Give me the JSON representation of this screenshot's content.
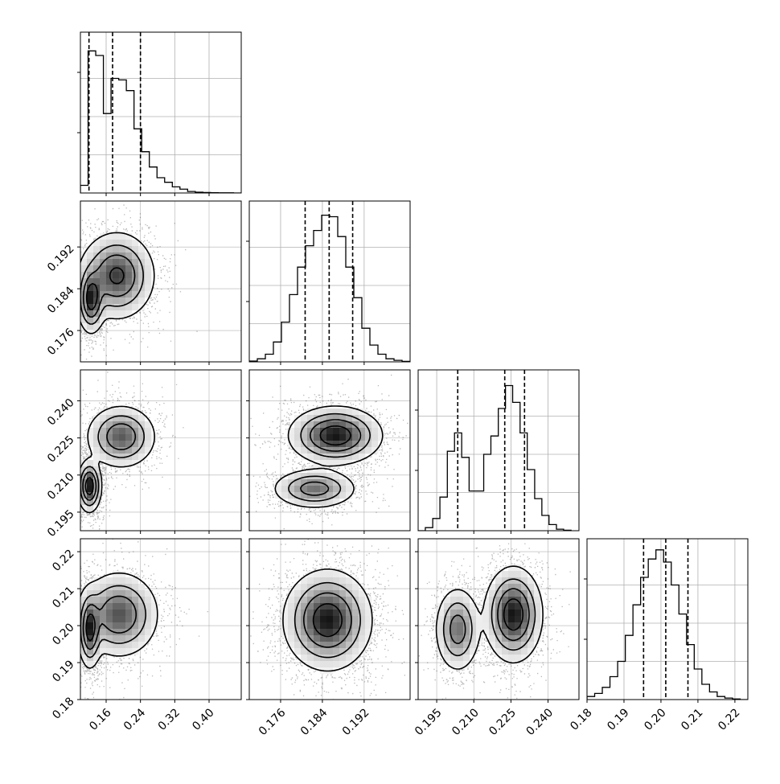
{
  "chart_data": {
    "type": "corner",
    "variables": [
      {
        "range": [
          0.1,
          0.475
        ],
        "ticks": [
          "0.16",
          "0.24",
          "0.32",
          "0.40"
        ],
        "tick_values": [
          0.16,
          0.24,
          0.32,
          0.4
        ],
        "quantiles": [
          0.12,
          0.175,
          0.24
        ],
        "hist_bins": [
          0.1,
          0.1179,
          0.1357,
          0.1536,
          0.1714,
          0.1893,
          0.2071,
          0.225,
          0.2429,
          0.2607,
          0.2786,
          0.2964,
          0.3143,
          0.3321,
          0.35,
          0.3679,
          0.3857,
          0.4036,
          0.4214,
          0.4393,
          0.4571,
          0.475
        ],
        "hist_counts": [
          0.05,
          0.93,
          0.9,
          0.52,
          0.75,
          0.74,
          0.67,
          0.42,
          0.27,
          0.17,
          0.1,
          0.07,
          0.04,
          0.025,
          0.01,
          0.005,
          0.003,
          0.002,
          0.001,
          0.001,
          0
        ],
        "hist_ylim": [
          0,
          1.0
        ]
      },
      {
        "range": [
          0.17,
          0.2008
        ],
        "ticks": [
          "0.176",
          "0.184",
          "0.192"
        ],
        "tick_values": [
          0.176,
          0.184,
          0.192
        ],
        "quantiles": [
          0.1807,
          0.1853,
          0.1898
        ],
        "hist_bins": [
          0.17,
          0.17154,
          0.17308,
          0.17462,
          0.17616,
          0.1777,
          0.17924,
          0.18078,
          0.18232,
          0.18386,
          0.1854,
          0.18694,
          0.18848,
          0.19002,
          0.19156,
          0.1931,
          0.19464,
          0.19618,
          0.19772,
          0.19926,
          0.2008
        ],
        "hist_counts": [
          0.005,
          0.02,
          0.05,
          0.13,
          0.26,
          0.44,
          0.62,
          0.76,
          0.86,
          0.96,
          0.95,
          0.82,
          0.62,
          0.42,
          0.22,
          0.11,
          0.05,
          0.02,
          0.01,
          0.003
        ],
        "hist_ylim": [
          0,
          1.0
        ]
      },
      {
        "range": [
          0.1875,
          0.2525
        ],
        "ticks": [
          "0.195",
          "0.210",
          "0.225",
          "0.240"
        ],
        "tick_values": [
          0.195,
          0.21,
          0.225,
          0.24
        ],
        "quantiles": [
          0.2035,
          0.2225,
          0.2305
        ],
        "hist_bins": [
          0.1875,
          0.1904,
          0.1934,
          0.1963,
          0.1993,
          0.2022,
          0.2051,
          0.2081,
          0.211,
          0.214,
          0.2169,
          0.2199,
          0.2228,
          0.2257,
          0.2287,
          0.2316,
          0.2346,
          0.2375,
          0.2404,
          0.2434,
          0.2463,
          0.2493
        ],
        "hist_counts": [
          0,
          0.02,
          0.08,
          0.22,
          0.52,
          0.64,
          0.48,
          0.26,
          0.26,
          0.5,
          0.62,
          0.8,
          0.95,
          0.84,
          0.64,
          0.4,
          0.21,
          0.1,
          0.04,
          0.01,
          0.003
        ],
        "hist_ylim": [
          0,
          1.0
        ]
      },
      {
        "range": [
          0.18,
          0.2235
        ],
        "ticks": [
          "0.18",
          "0.19",
          "0.20",
          "0.21",
          "0.22"
        ],
        "tick_values": [
          0.18,
          0.19,
          0.2,
          0.21,
          0.22
        ],
        "quantiles": [
          0.1953,
          0.2013,
          0.2073
        ],
        "hist_bins": [
          0.18,
          0.18207,
          0.18414,
          0.18621,
          0.18829,
          0.19036,
          0.19243,
          0.1945,
          0.19657,
          0.19864,
          0.20071,
          0.20279,
          0.20486,
          0.20693,
          0.209,
          0.21107,
          0.21314,
          0.21521,
          0.21729,
          0.21936,
          0.22143,
          0.2235
        ],
        "hist_counts": [
          0.02,
          0.04,
          0.08,
          0.15,
          0.25,
          0.42,
          0.62,
          0.8,
          0.92,
          0.98,
          0.9,
          0.75,
          0.56,
          0.36,
          0.2,
          0.1,
          0.05,
          0.02,
          0.01,
          0.004,
          0
        ],
        "hist_ylim": [
          0,
          1.0
        ]
      }
    ],
    "pairs": [
      {
        "x": 0,
        "y": 1,
        "modes": [
          {
            "cx": 0.125,
            "cy": 0.182,
            "sx": 0.014,
            "sy": 0.0028,
            "w": 1.0
          },
          {
            "cx": 0.185,
            "cy": 0.1865,
            "sx": 0.038,
            "sy": 0.0036,
            "w": 0.9
          }
        ],
        "contour_levels": [
          0.06,
          0.22,
          0.45,
          0.75
        ]
      },
      {
        "x": 0,
        "y": 2,
        "modes": [
          {
            "cx": 0.121,
            "cy": 0.2055,
            "sx": 0.012,
            "sy": 0.0045,
            "w": 1.0
          },
          {
            "cx": 0.195,
            "cy": 0.2255,
            "sx": 0.035,
            "sy": 0.0055,
            "w": 0.7
          }
        ],
        "contour_levels": [
          0.06,
          0.22,
          0.45,
          0.75
        ]
      },
      {
        "x": 1,
        "y": 2,
        "modes": [
          {
            "cx": 0.1825,
            "cy": 0.2045,
            "sx": 0.0035,
            "sy": 0.0035,
            "w": 0.6
          },
          {
            "cx": 0.1865,
            "cy": 0.226,
            "sx": 0.0038,
            "sy": 0.005,
            "w": 1.0
          }
        ],
        "contour_levels": [
          0.06,
          0.22,
          0.45,
          0.75
        ]
      },
      {
        "x": 0,
        "y": 3,
        "modes": [
          {
            "cx": 0.122,
            "cy": 0.199,
            "sx": 0.012,
            "sy": 0.0045,
            "w": 1.0
          },
          {
            "cx": 0.19,
            "cy": 0.203,
            "sx": 0.04,
            "sy": 0.005,
            "w": 0.85
          }
        ],
        "contour_levels": [
          0.06,
          0.22,
          0.45,
          0.75
        ]
      },
      {
        "x": 1,
        "y": 3,
        "modes": [
          {
            "cx": 0.185,
            "cy": 0.2015,
            "sx": 0.0036,
            "sy": 0.0058,
            "w": 1.0
          }
        ],
        "contour_levels": [
          0.06,
          0.22,
          0.45,
          0.75
        ]
      },
      {
        "x": 2,
        "y": 3,
        "modes": [
          {
            "cx": 0.2035,
            "cy": 0.199,
            "sx": 0.004,
            "sy": 0.005,
            "w": 0.6
          },
          {
            "cx": 0.226,
            "cy": 0.203,
            "sx": 0.005,
            "sy": 0.0055,
            "w": 1.0
          }
        ],
        "contour_levels": [
          0.06,
          0.22,
          0.45,
          0.75
        ]
      }
    ],
    "grid": true,
    "colors": {
      "line": "#000000",
      "grid": "#b0b0b0",
      "points": "#000000"
    }
  }
}
